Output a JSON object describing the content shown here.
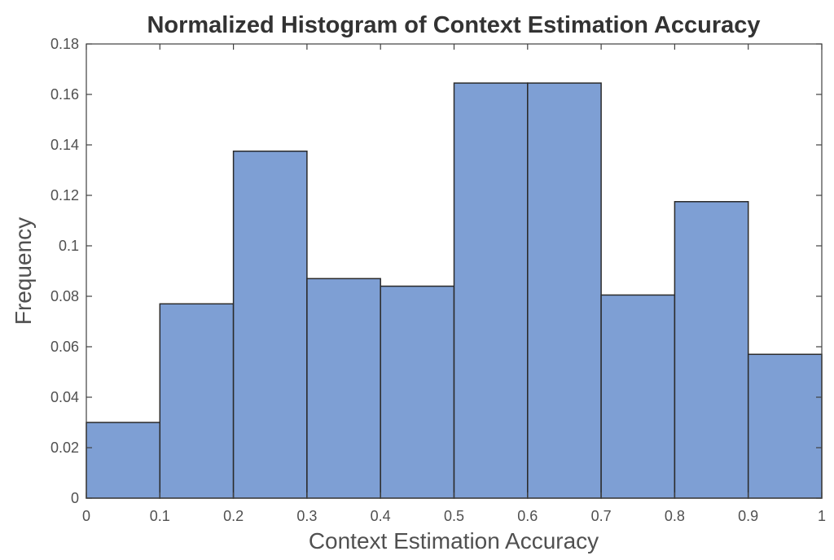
{
  "chart_data": {
    "type": "bar",
    "title": "Normalized Histogram of Context Estimation Accuracy",
    "xlabel": "Context Estimation Accuracy",
    "ylabel": "Frequency",
    "bin_edges": [
      0,
      0.1,
      0.2,
      0.3,
      0.4,
      0.5,
      0.6,
      0.7,
      0.8,
      0.9,
      1.0
    ],
    "values": [
      0.03,
      0.077,
      0.1375,
      0.087,
      0.084,
      0.1645,
      0.1645,
      0.0805,
      0.1175,
      0.057
    ],
    "xlim": [
      0,
      1
    ],
    "ylim": [
      0,
      0.18
    ],
    "xticks": [
      "0",
      "0.1",
      "0.2",
      "0.3",
      "0.4",
      "0.5",
      "0.6",
      "0.7",
      "0.8",
      "0.9",
      "1"
    ],
    "xtick_values": [
      0,
      0.1,
      0.2,
      0.3,
      0.4,
      0.5,
      0.6,
      0.7,
      0.8,
      0.9,
      1.0
    ],
    "yticks": [
      "0",
      "0.02",
      "0.04",
      "0.06",
      "0.08",
      "0.1",
      "0.12",
      "0.14",
      "0.16",
      "0.18"
    ],
    "ytick_values": [
      0,
      0.02,
      0.04,
      0.06,
      0.08,
      0.1,
      0.12,
      0.14,
      0.16,
      0.18
    ],
    "bar_color": "#7e9fd4",
    "grid": false,
    "legend": "none"
  }
}
